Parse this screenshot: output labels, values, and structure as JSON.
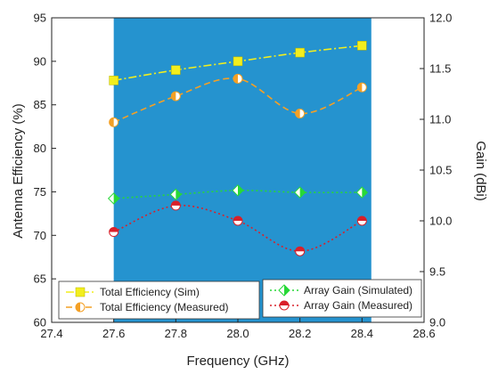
{
  "chart_data": {
    "type": "line",
    "title": "",
    "xlabel": "Frequency (GHz)",
    "ylabel": "Antenna Efficiency (%)",
    "y2label": "Gain (dBi)",
    "xlim": [
      27.4,
      28.6
    ],
    "ylim": [
      60,
      95
    ],
    "y2lim": [
      9.0,
      12.0
    ],
    "x_ticks": [
      "27.4",
      "27.6",
      "27.8",
      "28.0",
      "28.2",
      "28.4",
      "28.6"
    ],
    "y_ticks": [
      "60",
      "65",
      "70",
      "75",
      "80",
      "85",
      "90",
      "95"
    ],
    "y2_ticks": [
      "9.0",
      "9.5",
      "10.0",
      "10.5",
      "11.0",
      "11.5",
      "12.0"
    ],
    "band": {
      "x_start": 27.6,
      "x_end": 28.43,
      "color": "#2593cf"
    },
    "grid": false,
    "legend_groups": [
      {
        "position": "bottom-left",
        "series": [
          0,
          1
        ]
      },
      {
        "position": "bottom-right",
        "series": [
          2,
          3
        ]
      }
    ],
    "series": [
      {
        "name": "Total Efficiency (Sim)",
        "axis": "left",
        "x": [
          27.6,
          27.8,
          28.0,
          28.2,
          28.4
        ],
        "values": [
          87.8,
          89.0,
          90.0,
          91.0,
          91.8
        ],
        "color": "#f2ee1e",
        "marker": "square",
        "line": "dashdot"
      },
      {
        "name": "Total Efficiency (Measured)",
        "axis": "left",
        "x": [
          27.6,
          27.8,
          28.0,
          28.2,
          28.4
        ],
        "values": [
          83.0,
          86.0,
          88.0,
          84.0,
          87.0
        ],
        "color": "#f4a025",
        "marker": "half-circle-left",
        "line": "dashed"
      },
      {
        "name": "Array Gain (Simulated)",
        "axis": "right",
        "x": [
          27.6,
          27.8,
          28.0,
          28.2,
          28.4
        ],
        "values": [
          10.22,
          10.26,
          10.3,
          10.28,
          10.28
        ],
        "color": "#27d837",
        "marker": "half-diamond",
        "line": "dotted"
      },
      {
        "name": "Array Gain (Measured)",
        "axis": "right",
        "x": [
          27.6,
          27.8,
          28.0,
          28.2,
          28.4
        ],
        "values": [
          9.89,
          10.15,
          10.0,
          9.7,
          10.0
        ],
        "color": "#d9202a",
        "marker": "half-circle-top",
        "line": "dotted"
      }
    ]
  }
}
